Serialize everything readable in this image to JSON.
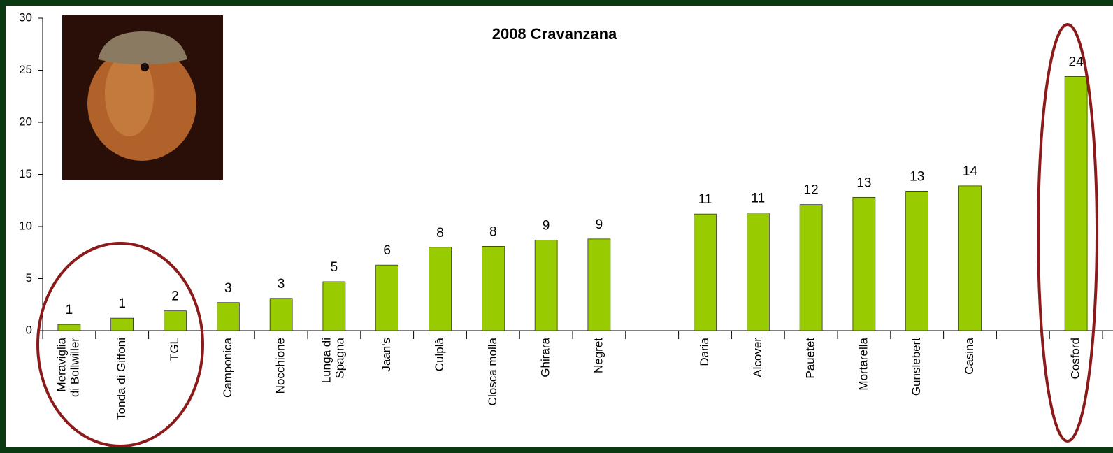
{
  "chart_data": {
    "type": "bar",
    "title": "2008 Cravanzana",
    "categories": [
      "Meraviglia\ndi Bollwiller",
      "Tonda di Giffoni",
      "TGL",
      "Camponica",
      "Nocchione",
      "Lunga di\nSpagna",
      "Jaan's",
      "Culplà",
      "Closca molla",
      "Ghirara",
      "Negret",
      null,
      "Daria",
      "Alcover",
      "Pauetet",
      "Mortarella",
      "Gunslebert",
      "Casina",
      null,
      "Cosford"
    ],
    "values": [
      0.6,
      1.2,
      1.9,
      2.7,
      3.1,
      4.7,
      6.3,
      8.0,
      8.1,
      8.7,
      8.8,
      null,
      11.2,
      11.3,
      12.1,
      12.8,
      13.4,
      13.9,
      null,
      24.4
    ],
    "value_labels": [
      "1",
      "1",
      "2",
      "3",
      "3",
      "5",
      "6",
      "8",
      "8",
      "9",
      "9",
      null,
      "11",
      "11",
      "12",
      "13",
      "13",
      "14",
      null,
      "24"
    ],
    "color": "#99cc00",
    "ylim": [
      0,
      30
    ],
    "yticks": [
      0,
      5,
      10,
      15,
      20,
      25,
      30
    ],
    "grid": false
  }
}
